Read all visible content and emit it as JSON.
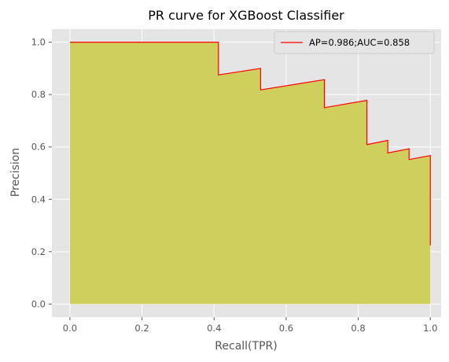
{
  "chart_data": {
    "type": "area",
    "title": "PR curve for XGBoost Classifier",
    "xlabel": "Recall(TPR)",
    "ylabel": "Precision",
    "xlim": [
      -0.05,
      1.03
    ],
    "ylim": [
      -0.05,
      1.05
    ],
    "xticks": [
      "0.0",
      "0.2",
      "0.4",
      "0.6",
      "0.8",
      "1.0"
    ],
    "yticks": [
      "0.0",
      "0.2",
      "0.4",
      "0.6",
      "0.8",
      "1.0"
    ],
    "grid": true,
    "legend_position": "top-right",
    "colors": {
      "line": "#ff0000",
      "fill": "#cfcf5d",
      "plot_background": "#e5e5e5",
      "grid": "#ffffff"
    },
    "series": [
      {
        "name": "AP=0.986;AUC=0.858",
        "x": [
          0.0,
          0.412,
          0.412,
          0.529,
          0.529,
          0.706,
          0.706,
          0.824,
          0.824,
          0.882,
          0.882,
          0.941,
          0.941,
          1.0,
          1.0
        ],
        "y": [
          1.0,
          1.0,
          0.875,
          0.9,
          0.818,
          0.857,
          0.75,
          0.778,
          0.609,
          0.625,
          0.577,
          0.593,
          0.552,
          0.567,
          0.224
        ]
      }
    ]
  }
}
